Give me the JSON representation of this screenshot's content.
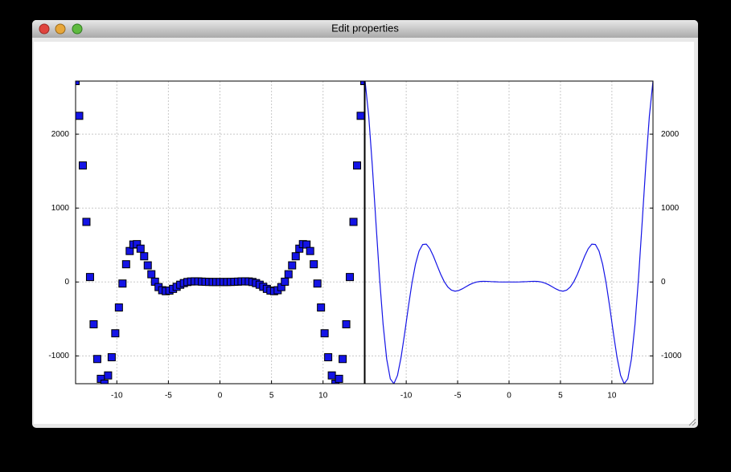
{
  "window": {
    "title": "Edit properties"
  },
  "chart_data": [
    {
      "type": "scatter",
      "color": "#1414e6",
      "grid": true,
      "y_axis_side": "left",
      "xlim": [
        -14,
        14
      ],
      "ylim": [
        -1376,
        2718
      ],
      "xticks": [
        -10,
        -5,
        0,
        5,
        10
      ],
      "yticks": [
        -1000,
        0,
        1000,
        2000
      ],
      "x": [
        -14,
        -13.65,
        -13.3,
        -12.95,
        -12.6,
        -12.25,
        -11.9,
        -11.55,
        -11.2,
        -10.85,
        -10.5,
        -10.15,
        -9.8,
        -9.45,
        -9.1,
        -8.75,
        -8.4,
        -8.05,
        -7.7,
        -7.35,
        -7,
        -6.65,
        -6.3,
        -5.95,
        -5.6,
        -5.25,
        -4.9,
        -4.55,
        -4.2,
        -3.85,
        -3.5,
        -3.15,
        -2.8,
        -2.45,
        -2.1,
        -1.75,
        -1.4,
        -1.05,
        -0.7,
        -0.35,
        0,
        0.35,
        0.7,
        1.05,
        1.4,
        1.75,
        2.1,
        2.45,
        2.8,
        3.15,
        3.5,
        3.85,
        4.2,
        4.55,
        4.9,
        5.25,
        5.6,
        5.95,
        6.3,
        6.65,
        7,
        7.35,
        7.7,
        8.05,
        8.4,
        8.75,
        9.1,
        9.45,
        9.8,
        10.15,
        10.5,
        10.85,
        11.2,
        11.55,
        11.9,
        12.25,
        12.6,
        12.95,
        13.3,
        13.65,
        14
      ],
      "values": [
        2718,
        2248,
        1576,
        813,
        67,
        -572,
        -1042,
        -1310,
        -1376,
        -1264,
        -1018,
        -694,
        -345,
        -21,
        240,
        419,
        507,
        512,
        451,
        348,
        225,
        105,
        4,
        -69,
        -111,
        -124,
        -116,
        -93,
        -65,
        -37,
        -15,
        0,
        7,
        9,
        8,
        5,
        3,
        1,
        0,
        0,
        0,
        0,
        0,
        1,
        3,
        5,
        8,
        9,
        7,
        0,
        -15,
        -37,
        -65,
        -93,
        -116,
        -124,
        -111,
        -69,
        4,
        105,
        225,
        348,
        451,
        512,
        507,
        419,
        240,
        -21,
        -345,
        -694,
        -1018,
        -1264,
        -1376,
        -1310,
        -1042,
        -572,
        67,
        813,
        1576,
        2248,
        2718
      ]
    },
    {
      "type": "line",
      "color": "#1414e6",
      "grid": true,
      "y_axis_side": "right",
      "xlim": [
        -14,
        14
      ],
      "ylim": [
        -1376,
        2718
      ],
      "xticks": [
        -10,
        -5,
        0,
        5,
        10
      ],
      "yticks": [
        -1000,
        0,
        1000,
        2000
      ],
      "x": [
        -14,
        -13.65,
        -13.3,
        -12.95,
        -12.6,
        -12.25,
        -11.9,
        -11.55,
        -11.2,
        -10.85,
        -10.5,
        -10.15,
        -9.8,
        -9.45,
        -9.1,
        -8.75,
        -8.4,
        -8.05,
        -7.7,
        -7.35,
        -7,
        -6.65,
        -6.3,
        -5.95,
        -5.6,
        -5.25,
        -4.9,
        -4.55,
        -4.2,
        -3.85,
        -3.5,
        -3.15,
        -2.8,
        -2.45,
        -2.1,
        -1.75,
        -1.4,
        -1.05,
        -0.7,
        -0.35,
        0,
        0.35,
        0.7,
        1.05,
        1.4,
        1.75,
        2.1,
        2.45,
        2.8,
        3.15,
        3.5,
        3.85,
        4.2,
        4.55,
        4.9,
        5.25,
        5.6,
        5.95,
        6.3,
        6.65,
        7,
        7.35,
        7.7,
        8.05,
        8.4,
        8.75,
        9.1,
        9.45,
        9.8,
        10.15,
        10.5,
        10.85,
        11.2,
        11.55,
        11.9,
        12.25,
        12.6,
        12.95,
        13.3,
        13.65,
        14
      ],
      "values": [
        2718,
        2248,
        1576,
        813,
        67,
        -572,
        -1042,
        -1310,
        -1376,
        -1264,
        -1018,
        -694,
        -345,
        -21,
        240,
        419,
        507,
        512,
        451,
        348,
        225,
        105,
        4,
        -69,
        -111,
        -124,
        -116,
        -93,
        -65,
        -37,
        -15,
        0,
        7,
        9,
        8,
        5,
        3,
        1,
        0,
        0,
        0,
        0,
        0,
        1,
        3,
        5,
        8,
        9,
        7,
        0,
        -15,
        -37,
        -65,
        -93,
        -116,
        -124,
        -111,
        -69,
        4,
        105,
        225,
        348,
        451,
        512,
        507,
        419,
        240,
        -21,
        -345,
        -694,
        -1018,
        -1264,
        -1376,
        -1310,
        -1042,
        -572,
        67,
        813,
        1576,
        2248,
        2718
      ]
    }
  ]
}
